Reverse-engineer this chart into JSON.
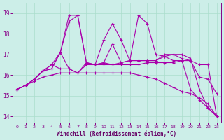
{
  "xlabel": "Windchill (Refroidissement éolien,°C)",
  "x": [
    0,
    1,
    2,
    3,
    4,
    5,
    6,
    7,
    8,
    9,
    10,
    11,
    12,
    13,
    14,
    15,
    16,
    17,
    18,
    19,
    20,
    21,
    22,
    23
  ],
  "series": [
    [
      15.3,
      15.5,
      15.8,
      16.2,
      16.3,
      17.1,
      18.6,
      18.9,
      16.6,
      16.5,
      16.6,
      17.5,
      16.6,
      16.7,
      16.7,
      16.7,
      16.7,
      17.0,
      17.0,
      17.0,
      16.8,
      15.3,
      14.4,
      14.0
    ],
    [
      15.3,
      15.5,
      15.8,
      16.2,
      16.3,
      17.1,
      18.9,
      18.9,
      16.6,
      16.5,
      17.7,
      18.5,
      17.7,
      16.7,
      18.9,
      18.5,
      17.0,
      16.9,
      16.7,
      16.7,
      15.3,
      14.8,
      14.4,
      14.0
    ],
    [
      15.3,
      15.5,
      15.8,
      16.2,
      16.5,
      16.3,
      16.3,
      16.1,
      16.5,
      16.5,
      16.5,
      16.5,
      16.5,
      16.5,
      16.5,
      16.6,
      16.6,
      16.6,
      16.6,
      16.7,
      16.7,
      16.5,
      16.5,
      14.0
    ],
    [
      15.3,
      15.5,
      15.8,
      16.2,
      16.5,
      17.1,
      16.3,
      16.1,
      16.6,
      16.5,
      16.6,
      16.5,
      16.6,
      16.7,
      16.7,
      16.7,
      16.7,
      16.9,
      17.0,
      16.8,
      16.7,
      15.9,
      15.8,
      15.1
    ],
    [
      15.3,
      15.5,
      15.7,
      15.9,
      16.0,
      16.1,
      16.1,
      16.1,
      16.1,
      16.1,
      16.1,
      16.1,
      16.1,
      16.1,
      16.0,
      15.9,
      15.8,
      15.6,
      15.4,
      15.2,
      15.1,
      14.9,
      14.6,
      14.0
    ]
  ],
  "line_color": "#aa00aa",
  "marker": "+",
  "ylim_min": 13.7,
  "ylim_max": 19.5,
  "yticks": [
    14,
    15,
    16,
    17,
    18,
    19
  ],
  "bg_color": "#cceee8",
  "grid_color": "#aaddcc",
  "axes_color": "#880088",
  "tick_label_color": "#660066"
}
